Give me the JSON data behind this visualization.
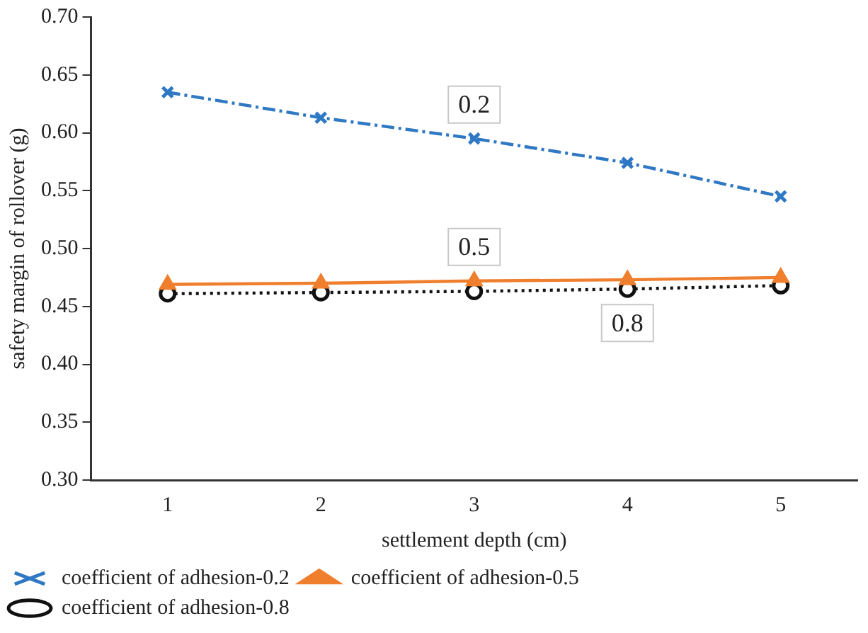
{
  "chart_data": {
    "type": "line",
    "xlabel": "settlement depth (cm)",
    "ylabel": "safety margin of rollover (g)",
    "categories": [
      "1",
      "2",
      "3",
      "4",
      "5"
    ],
    "series": [
      {
        "name": "coefficient of adhesion-0.2",
        "color": "#2f78c4",
        "values": [
          0.635,
          0.613,
          0.595,
          0.574,
          0.545
        ],
        "marker": "cross",
        "line_style": "dashed"
      },
      {
        "name": "coefficient of adhesion-0.5",
        "color": "#f07f2d",
        "values": [
          0.469,
          0.47,
          0.472,
          0.473,
          0.475
        ],
        "marker": "triangle",
        "line_style": "solid"
      },
      {
        "name": "coefficient of adhesion-0.8",
        "color": "#111111",
        "values": [
          0.461,
          0.462,
          0.463,
          0.465,
          0.468
        ],
        "marker": "circle",
        "line_style": "dotted"
      }
    ],
    "ylim": [
      0.3,
      0.7
    ],
    "yticks": [
      {
        "value": 0.3,
        "label": "0.30"
      },
      {
        "value": 0.35,
        "label": "0.35"
      },
      {
        "value": 0.4,
        "label": "0.40"
      },
      {
        "value": 0.45,
        "label": "0.45"
      },
      {
        "value": 0.5,
        "label": "0.50"
      },
      {
        "value": 0.55,
        "label": "0.55"
      },
      {
        "value": 0.6,
        "label": "0.60"
      },
      {
        "value": 0.65,
        "label": "0.65"
      },
      {
        "value": 0.7,
        "label": "0.70"
      }
    ],
    "grid": false,
    "legend": "bottom left",
    "annotations": [
      {
        "text": "0.2",
        "x": "3",
        "y": 0.595
      },
      {
        "text": "0.5",
        "x": "3",
        "y": 0.472
      },
      {
        "text": "0.8",
        "x": "4",
        "y": 0.465
      }
    ]
  }
}
